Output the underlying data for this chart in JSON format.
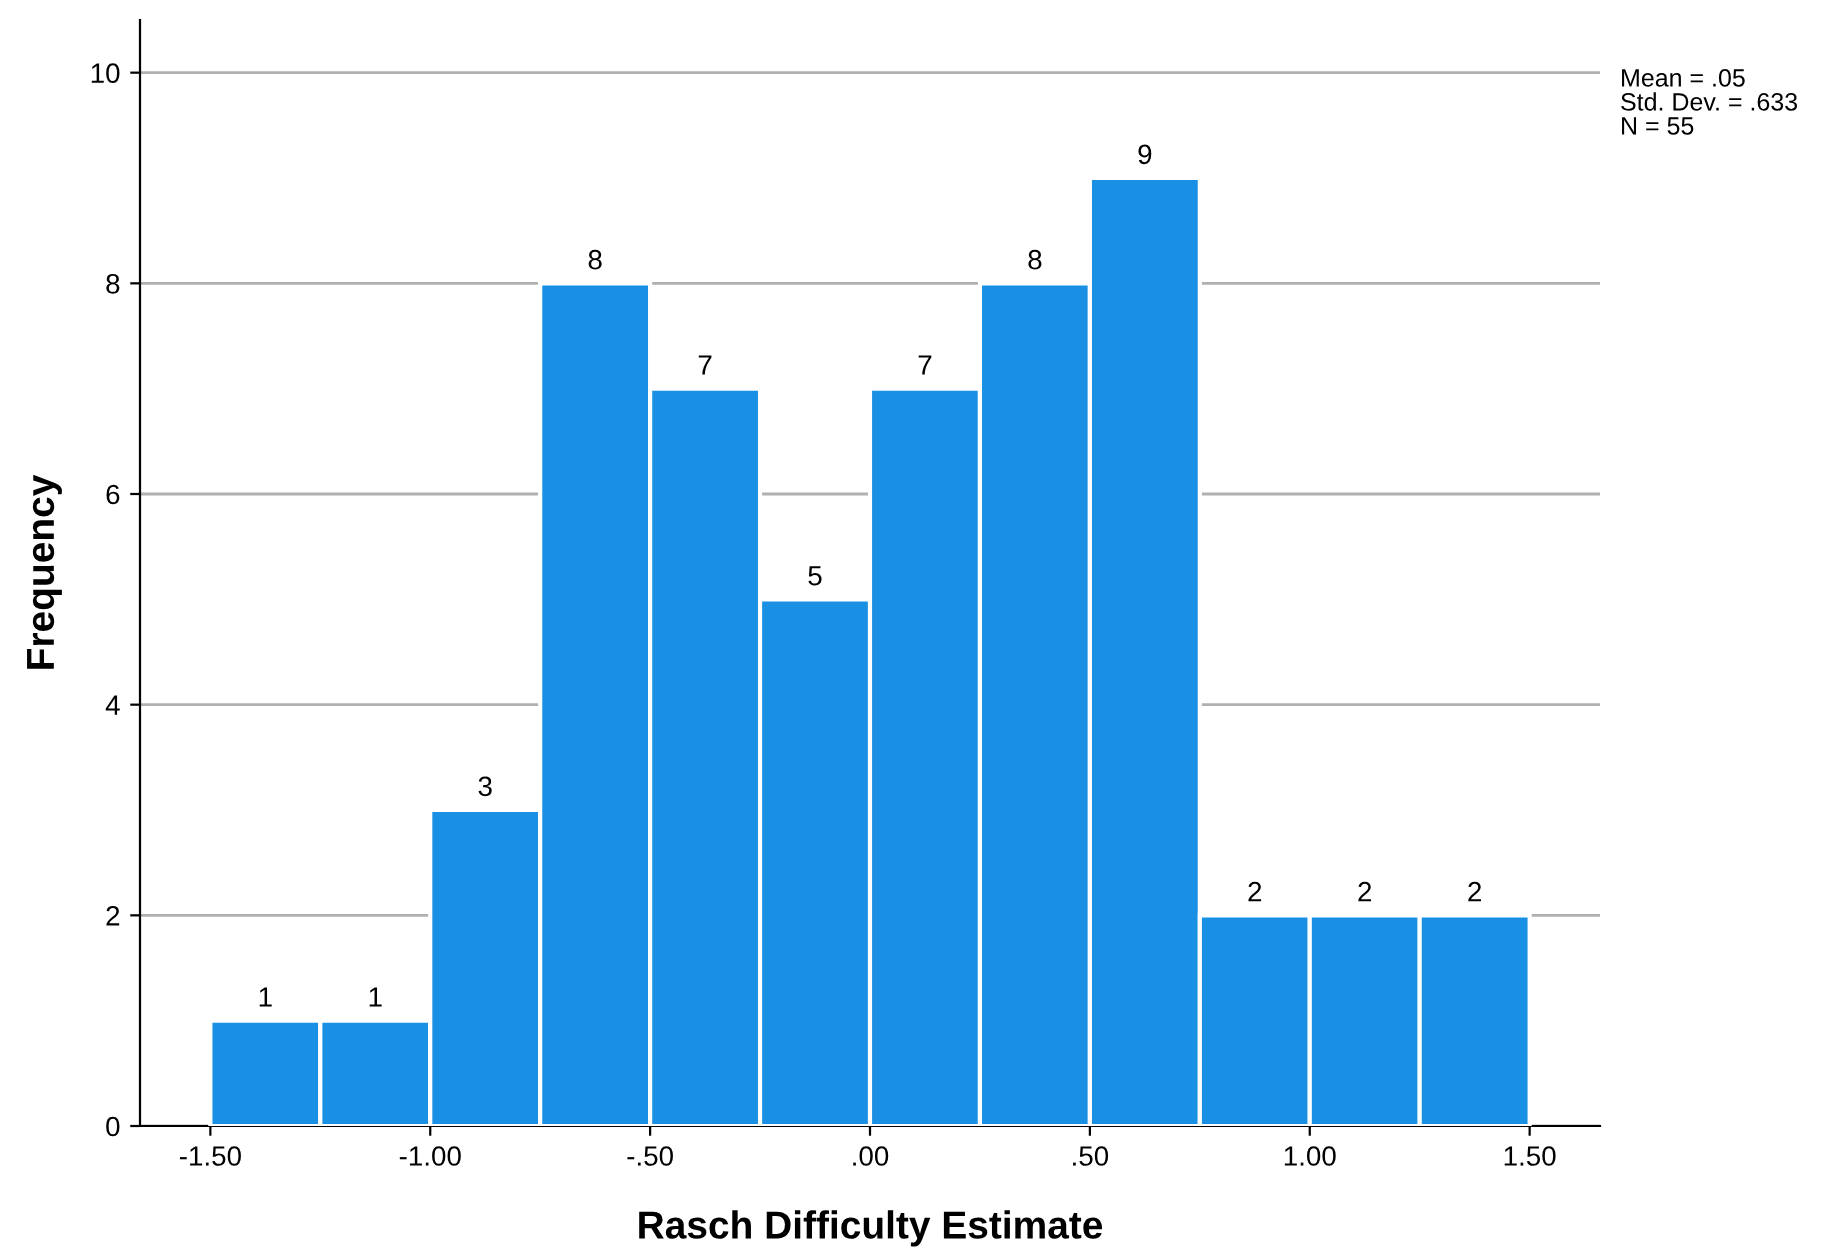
{
  "chart_data": {
    "type": "histogram",
    "xlabel": "Rasch Difficulty Estimate",
    "ylabel": "Frequency",
    "bins": [
      -1.5,
      -1.25,
      -1.0,
      -0.75,
      -0.5,
      -0.25,
      0.0,
      0.25,
      0.5,
      0.75,
      1.0,
      1.25,
      1.5
    ],
    "values": [
      1,
      1,
      3,
      8,
      7,
      5,
      7,
      8,
      9,
      2,
      2,
      2
    ],
    "color": "#1a90e4",
    "data_labels": true,
    "xlim": [
      -1.66,
      1.66
    ],
    "ylim": [
      0,
      10.5
    ],
    "xticks": [
      {
        "value": -1.5,
        "label": "-1.50"
      },
      {
        "value": -1.0,
        "label": "-1.00"
      },
      {
        "value": -0.5,
        "label": "-.50"
      },
      {
        "value": 0.0,
        "label": ".00"
      },
      {
        "value": 0.5,
        "label": ".50"
      },
      {
        "value": 1.0,
        "label": "1.00"
      },
      {
        "value": 1.5,
        "label": "1.50"
      }
    ],
    "yticks": [
      0,
      2,
      4,
      6,
      8,
      10
    ],
    "grid": "y",
    "annotations": [
      "Mean = .05",
      "Std. Dev. = .633",
      "N = 55"
    ]
  }
}
